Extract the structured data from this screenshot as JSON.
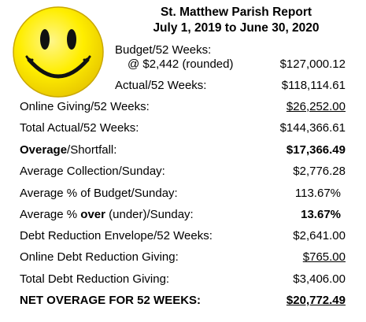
{
  "header": {
    "title": "St. Matthew Parish Report",
    "period": "July 1, 2019 to June 30, 2020"
  },
  "colors": {
    "smiley_face": "#ffee00",
    "smiley_outline": "#caa800",
    "text": "#000000"
  },
  "icons": {
    "logo": "smiley-face-icon"
  },
  "rows": {
    "budget_line1": "Budget/52 Weeks:",
    "budget_line2": "@ $2,442 (rounded)",
    "budget_value": "$127,000.12",
    "actual_label": "Actual/52 Weeks:",
    "actual_value": "$118,114.61",
    "online_label": "Online Giving/52 Weeks:",
    "online_value": "$26,252.00",
    "total_actual_label": "Total Actual/52 Weeks:",
    "total_actual_value": "$144,366.61",
    "overage_label_bold": "Overage",
    "overage_label_rest": "/Shortfall:",
    "overage_value": "$17,366.49",
    "avg_collection_label": "Average Collection/Sunday:",
    "avg_collection_value": "$2,776.28",
    "avg_pct_budget_label": "Average % of Budget/Sunday:",
    "avg_pct_budget_value": "113.67%",
    "avg_pct_over_pre": "Average % ",
    "avg_pct_over_bold": "over",
    "avg_pct_over_post": " (under)/Sunday:",
    "avg_pct_over_value": "13.67%",
    "debt_env_label": "Debt Reduction Envelope/52 Weeks:",
    "debt_env_value": "$2,641.00",
    "online_debt_label": "Online Debt Reduction Giving:",
    "online_debt_value": "$765.00",
    "total_debt_label": "Total Debt Reduction Giving:",
    "total_debt_value": "$3,406.00",
    "net_label": "NET OVERAGE FOR 52 WEEKS:",
    "net_value": "$20,772.49"
  }
}
